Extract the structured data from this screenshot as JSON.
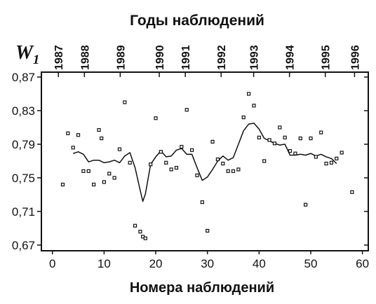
{
  "chart_data": {
    "type": "scatter",
    "title": "Годы наблюдений",
    "xlabel": "Номера наблюдений",
    "ylabel": "W",
    "ylabel_sub": "1",
    "xlim": [
      -2,
      61
    ],
    "ylim": [
      0.664,
      0.875
    ],
    "x_ticks": [
      0,
      10,
      20,
      30,
      40,
      50,
      60
    ],
    "y_ticks": [
      "0,87",
      "0,83",
      "0,79",
      "0,75",
      "0,71",
      "0,67"
    ],
    "y_tick_values": [
      0.87,
      0.83,
      0.79,
      0.75,
      0.71,
      0.67
    ],
    "top_ticks": [
      {
        "label": "1987",
        "x": 5
      },
      {
        "label": "1988",
        "x": 13
      },
      {
        "label": "1989",
        "x": 24
      },
      {
        "label": "1990",
        "x": 36
      },
      {
        "label": "1991",
        "x": 44
      },
      {
        "label": "1992",
        "x": 55
      },
      {
        "label": "1993",
        "x": 65
      },
      {
        "label": "1994",
        "x": 76
      },
      {
        "label": "1995",
        "x": 87
      },
      {
        "label": "1996",
        "x": 96
      }
    ],
    "grid": false,
    "series": [
      {
        "type": "scatter",
        "marker": "square",
        "x": [
          2,
          3,
          4,
          5,
          6,
          7,
          8,
          9,
          9.5,
          10,
          11,
          12,
          13,
          14,
          15,
          16,
          17,
          17.5,
          18,
          19,
          20,
          21,
          22,
          23,
          24,
          25,
          26,
          27,
          28,
          29,
          30,
          31,
          32,
          33,
          34,
          35,
          36,
          37,
          38,
          39,
          40,
          41,
          42,
          43,
          44,
          45,
          46,
          47,
          48,
          49,
          50,
          51,
          52,
          53,
          54,
          55,
          56,
          58
        ],
        "values": [
          0.742,
          0.803,
          0.786,
          0.801,
          0.758,
          0.758,
          0.742,
          0.807,
          0.797,
          0.745,
          0.755,
          0.75,
          0.784,
          0.84,
          0.768,
          0.693,
          0.686,
          0.68,
          0.678,
          0.766,
          0.821,
          0.781,
          0.768,
          0.76,
          0.762,
          0.787,
          0.831,
          0.783,
          0.753,
          0.721,
          0.687,
          0.793,
          0.772,
          0.767,
          0.758,
          0.758,
          0.76,
          0.822,
          0.85,
          0.836,
          0.798,
          0.77,
          0.795,
          0.791,
          0.81,
          0.798,
          0.782,
          0.779,
          0.797,
          0.718,
          0.797,
          0.775,
          0.804,
          0.767,
          0.768,
          0.773,
          0.78,
          0.733
        ]
      },
      {
        "type": "line",
        "x": [
          4,
          5,
          6,
          7,
          8,
          9,
          10,
          11,
          12,
          13,
          14,
          15,
          16,
          17,
          17.5,
          18,
          19,
          20,
          21,
          22,
          23,
          24,
          25,
          26,
          27,
          28,
          29,
          30,
          31,
          32,
          33,
          34,
          35,
          36,
          37,
          38,
          39,
          40,
          41,
          42,
          43,
          44,
          45,
          46,
          47,
          48,
          49,
          50,
          51,
          52,
          53,
          54,
          55
        ],
        "values": [
          0.779,
          0.781,
          0.778,
          0.769,
          0.771,
          0.771,
          0.768,
          0.769,
          0.771,
          0.768,
          0.776,
          0.78,
          0.762,
          0.735,
          0.722,
          0.731,
          0.766,
          0.775,
          0.782,
          0.775,
          0.776,
          0.783,
          0.785,
          0.778,
          0.778,
          0.762,
          0.747,
          0.751,
          0.76,
          0.77,
          0.776,
          0.771,
          0.774,
          0.79,
          0.806,
          0.814,
          0.815,
          0.808,
          0.797,
          0.794,
          0.791,
          0.789,
          0.79,
          0.777,
          0.777,
          0.778,
          0.777,
          0.779,
          0.776,
          0.778,
          0.775,
          0.773,
          0.767
        ]
      }
    ]
  }
}
